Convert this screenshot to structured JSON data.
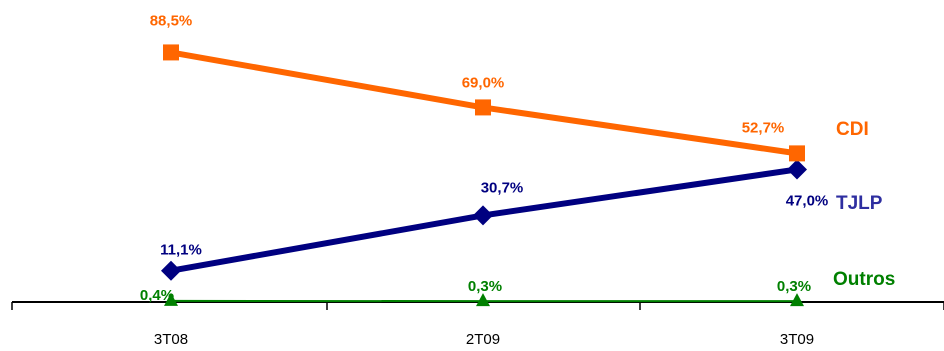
{
  "chart_data": {
    "type": "line",
    "title": "",
    "xlabel": "",
    "ylabel": "",
    "categories": [
      "3T08",
      "2T09",
      "3T09"
    ],
    "ylim": [
      0,
      100
    ],
    "grid": false,
    "legend": "inline-right",
    "series": [
      {
        "name": "CDI",
        "values": [
          88.5,
          69.0,
          52.7
        ],
        "labels": [
          "88,5%",
          "69,0%",
          "52,7%"
        ],
        "color": "#FF6600",
        "marker": "square"
      },
      {
        "name": "TJLP",
        "values": [
          11.1,
          30.7,
          47.0
        ],
        "labels": [
          "11,1%",
          "30,7%",
          "47,0%"
        ],
        "color": "#000080",
        "marker": "diamond"
      },
      {
        "name": "Outros",
        "values": [
          0.4,
          0.3,
          0.3
        ],
        "labels": [
          "0,4%",
          "0,3%",
          "0,3%"
        ],
        "color": "#008000",
        "marker": "triangle"
      }
    ]
  }
}
